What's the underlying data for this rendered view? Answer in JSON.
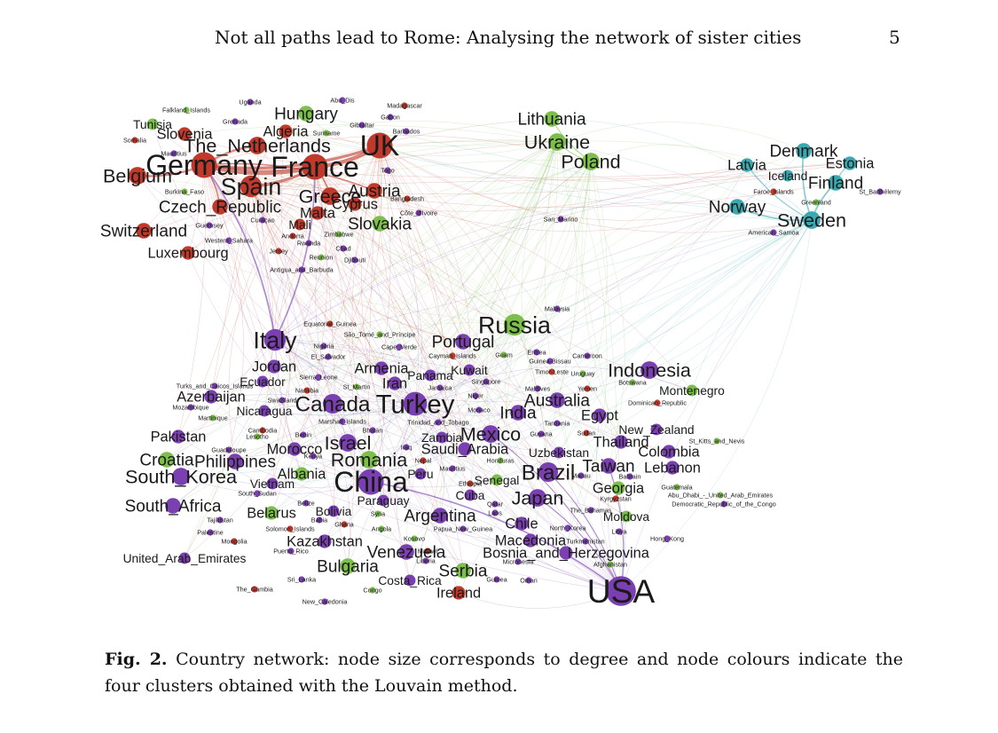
{
  "header": {
    "title": "Not all paths lead to Rome: Analysing the network of sister cities",
    "page_number": "5"
  },
  "caption": {
    "label": "Fig. 2.",
    "text": "Country network: node size corresponds to degree and node colours indicate the four clusters obtained with the Louvain method."
  },
  "colors": {
    "red": "#c0392b",
    "purple": "#7a3fb0",
    "green": "#7cbf4a",
    "teal": "#3aa8b0"
  },
  "nodes": [
    {
      "name": "UK",
      "cluster": "red",
      "degree": 10
    },
    {
      "name": "France",
      "cluster": "red",
      "degree": 10
    },
    {
      "name": "Germany",
      "cluster": "red",
      "degree": 10
    },
    {
      "name": "Spain",
      "cluster": "red",
      "degree": 8
    },
    {
      "name": "The_Netherlands",
      "cluster": "red",
      "degree": 6
    },
    {
      "name": "Belgium",
      "cluster": "red",
      "degree": 6
    },
    {
      "name": "Greece",
      "cluster": "red",
      "degree": 6
    },
    {
      "name": "Austria",
      "cluster": "red",
      "degree": 5
    },
    {
      "name": "Czech_Republic",
      "cluster": "red",
      "degree": 5
    },
    {
      "name": "Switzerland",
      "cluster": "red",
      "degree": 5
    },
    {
      "name": "Luxembourg",
      "cluster": "red",
      "degree": 4
    },
    {
      "name": "Slovenia",
      "cluster": "red",
      "degree": 4
    },
    {
      "name": "Algeria",
      "cluster": "red",
      "degree": 4
    },
    {
      "name": "Malta",
      "cluster": "red",
      "degree": 4
    },
    {
      "name": "Cyprus",
      "cluster": "red",
      "degree": 4
    },
    {
      "name": "Mali",
      "cluster": "red",
      "degree": 3
    },
    {
      "name": "Hungary",
      "cluster": "green",
      "degree": 5
    },
    {
      "name": "Tunisia",
      "cluster": "green",
      "degree": 3
    },
    {
      "name": "Lithuania",
      "cluster": "green",
      "degree": 5
    },
    {
      "name": "Ukraine",
      "cluster": "green",
      "degree": 6
    },
    {
      "name": "Poland",
      "cluster": "green",
      "degree": 6
    },
    {
      "name": "Slovakia",
      "cluster": "green",
      "degree": 5
    },
    {
      "name": "Russia",
      "cluster": "green",
      "degree": 8
    },
    {
      "name": "Croatia",
      "cluster": "green",
      "degree": 5
    },
    {
      "name": "Bulgaria",
      "cluster": "green",
      "degree": 5
    },
    {
      "name": "Serbia",
      "cluster": "green",
      "degree": 5
    },
    {
      "name": "Georgia",
      "cluster": "green",
      "degree": 4
    },
    {
      "name": "Romania",
      "cluster": "green",
      "degree": 6
    },
    {
      "name": "Denmark",
      "cluster": "teal",
      "degree": 5
    },
    {
      "name": "Latvia",
      "cluster": "teal",
      "degree": 4
    },
    {
      "name": "Estonia",
      "cluster": "teal",
      "degree": 4
    },
    {
      "name": "Finland",
      "cluster": "teal",
      "degree": 5
    },
    {
      "name": "Norway",
      "cluster": "teal",
      "degree": 5
    },
    {
      "name": "Sweden",
      "cluster": "teal",
      "degree": 6
    },
    {
      "name": "Iceland",
      "cluster": "teal",
      "degree": 3
    },
    {
      "name": "USA",
      "cluster": "purple",
      "degree": 12
    },
    {
      "name": "China",
      "cluster": "purple",
      "degree": 10
    },
    {
      "name": "Italy",
      "cluster": "purple",
      "degree": 8
    },
    {
      "name": "Turkey",
      "cluster": "purple",
      "degree": 9
    },
    {
      "name": "Canada",
      "cluster": "purple",
      "degree": 7
    },
    {
      "name": "Indonesia",
      "cluster": "purple",
      "degree": 6
    },
    {
      "name": "Brazil",
      "cluster": "purple",
      "degree": 7
    },
    {
      "name": "Japan",
      "cluster": "purple",
      "degree": 6
    },
    {
      "name": "Israel",
      "cluster": "purple",
      "degree": 6
    },
    {
      "name": "Mexico",
      "cluster": "purple",
      "degree": 6
    },
    {
      "name": "Argentina",
      "cluster": "purple",
      "degree": 5
    },
    {
      "name": "India",
      "cluster": "purple",
      "degree": 5
    },
    {
      "name": "Australia",
      "cluster": "purple",
      "degree": 5
    },
    {
      "name": "Taiwan",
      "cluster": "purple",
      "degree": 5
    },
    {
      "name": "Venezuela",
      "cluster": "purple",
      "degree": 5
    },
    {
      "name": "Philippines",
      "cluster": "purple",
      "degree": 5
    },
    {
      "name": "South_Korea",
      "cluster": "purple",
      "degree": 6
    },
    {
      "name": "South_Africa",
      "cluster": "purple",
      "degree": 5
    },
    {
      "name": "Portugal",
      "cluster": "purple",
      "degree": 5
    },
    {
      "name": "Egypt",
      "cluster": "purple",
      "degree": 4
    },
    {
      "name": "Thailand",
      "cluster": "purple",
      "degree": 4
    },
    {
      "name": "Pakistan",
      "cluster": "purple",
      "degree": 4
    },
    {
      "name": "Lebanon",
      "cluster": "purple",
      "degree": 4
    },
    {
      "name": "Kazakhstan",
      "cluster": "purple",
      "degree": 4
    },
    {
      "name": "Macedonia",
      "cluster": "purple",
      "degree": 4
    },
    {
      "name": "Bosnia_and_Herzegovina",
      "cluster": "purple",
      "degree": 4
    },
    {
      "name": "Ireland",
      "cluster": "red",
      "degree": 4
    },
    {
      "name": "Iran",
      "cluster": "purple",
      "degree": 4
    },
    {
      "name": "Jordan",
      "cluster": "purple",
      "degree": 4
    },
    {
      "name": "Armenia",
      "cluster": "purple",
      "degree": 4
    },
    {
      "name": "Morocco",
      "cluster": "purple",
      "degree": 4
    },
    {
      "name": "Belarus",
      "cluster": "green",
      "degree": 4
    },
    {
      "name": "Albania",
      "cluster": "green",
      "degree": 4
    },
    {
      "name": "Colombia",
      "cluster": "purple",
      "degree": 4
    },
    {
      "name": "Chile",
      "cluster": "purple",
      "degree": 4
    },
    {
      "name": "Saudi_Arabia",
      "cluster": "purple",
      "degree": 4
    },
    {
      "name": "Azerbaijan",
      "cluster": "purple",
      "degree": 4
    },
    {
      "name": "Montenegro",
      "cluster": "green",
      "degree": 3
    },
    {
      "name": "Moldova",
      "cluster": "green",
      "degree": 3
    },
    {
      "name": "Cuba",
      "cluster": "purple",
      "degree": 3
    },
    {
      "name": "Nicaragua",
      "cluster": "purple",
      "degree": 3
    },
    {
      "name": "Ecuador",
      "cluster": "purple",
      "degree": 3
    },
    {
      "name": "Senegal",
      "cluster": "green",
      "degree": 3
    },
    {
      "name": "Uzbekistan",
      "cluster": "purple",
      "degree": 3
    },
    {
      "name": "New_Zealand",
      "cluster": "purple",
      "degree": 3
    },
    {
      "name": "United_Arab_Emirates",
      "cluster": "purple",
      "degree": 3
    },
    {
      "name": "Vietnam",
      "cluster": "purple",
      "degree": 3
    },
    {
      "name": "Zambia",
      "cluster": "purple",
      "degree": 3
    },
    {
      "name": "Peru",
      "cluster": "purple",
      "degree": 3
    },
    {
      "name": "Bolivia",
      "cluster": "purple",
      "degree": 3
    },
    {
      "name": "Paraguay",
      "cluster": "purple",
      "degree": 3
    },
    {
      "name": "Costa_Rica",
      "cluster": "purple",
      "degree": 3
    },
    {
      "name": "Kuwait",
      "cluster": "purple",
      "degree": 3
    },
    {
      "name": "Panama",
      "cluster": "purple",
      "degree": 3
    }
  ],
  "minor_labels": [
    "Uganda",
    "Abu_Dis",
    "Madagascar",
    "Falkland_Islands",
    "Grenada",
    "Gibraltar",
    "Gabon",
    "Somalia",
    "Suriname",
    "Barbados",
    "Mauritius",
    "Togo",
    "Bangladesh",
    "Burkina_Faso",
    "Côte_d'Ivoire",
    "Curaçao",
    "Guernsey",
    "Andorra",
    "Zimbabwe",
    "Western_Sahara",
    "Rwanda",
    "Chad",
    "Jersey",
    "Reunion",
    "Djibouti",
    "Antigua_and_Barbuda",
    "San_Marino",
    "Faroe_Islands",
    "Greenland",
    "St_Barthélemy",
    "American_Samoa",
    "Malaysia",
    "Equatorial_Guinea",
    "São_Tomé_and_Príncipe",
    "Nigeria",
    "Cape_Verde",
    "El_Salvador",
    "Cayman_Islands",
    "Guam",
    "Eritrea",
    "Guinea-Bissau",
    "Cameroon",
    "Timor-Leste",
    "Uruguay",
    "Sierra_Leone",
    "Singapore",
    "Turks_and_Caicos_Islands",
    "Namibia",
    "St_Martin",
    "Jamaica",
    "Niger",
    "Maldives",
    "Yemen",
    "Botswana",
    "Mozambique",
    "Swaziland",
    "Monaco",
    "Dominican_Republic",
    "Martinique",
    "Marshall_Islands",
    "Trinidad_and_Tobago",
    "Tanzania",
    "Cambodia",
    "Lesotho",
    "Bhutan",
    "Benin",
    "Guyana",
    "Sudan",
    "St_Kitts_and_Nevis",
    "Guadeloupe",
    "Kenya",
    "Iraq",
    "Nepal",
    "Honduras",
    "Macau",
    "Bahrain",
    "Mauritius",
    "Ethiopia",
    "Guatemala",
    "South_Sudan",
    "Belize",
    "Qatar",
    "Kyrgyzstan",
    "Abu_Dhabi_-_United_Arab_Emirates",
    "Democratic_Republic_of_the_Congo",
    "Tajikistan",
    "Bahia",
    "Ghana",
    "Syria",
    "Laos",
    "The_Bahamas",
    "Palestine",
    "Solomon_Islands",
    "Angola",
    "Papua_New_Guinea",
    "North_Korea",
    "Libya",
    "Mongolia",
    "Kosovo",
    "Turkmenistan",
    "Hong_Kong",
    "Puerto_Rico",
    "Malawi",
    "Afghanistan",
    "Sri_Lanka",
    "Liberia",
    "Micronesia",
    "The_Gambia",
    "Congo",
    "Guinea",
    "Oman",
    "New_Caledonia"
  ]
}
